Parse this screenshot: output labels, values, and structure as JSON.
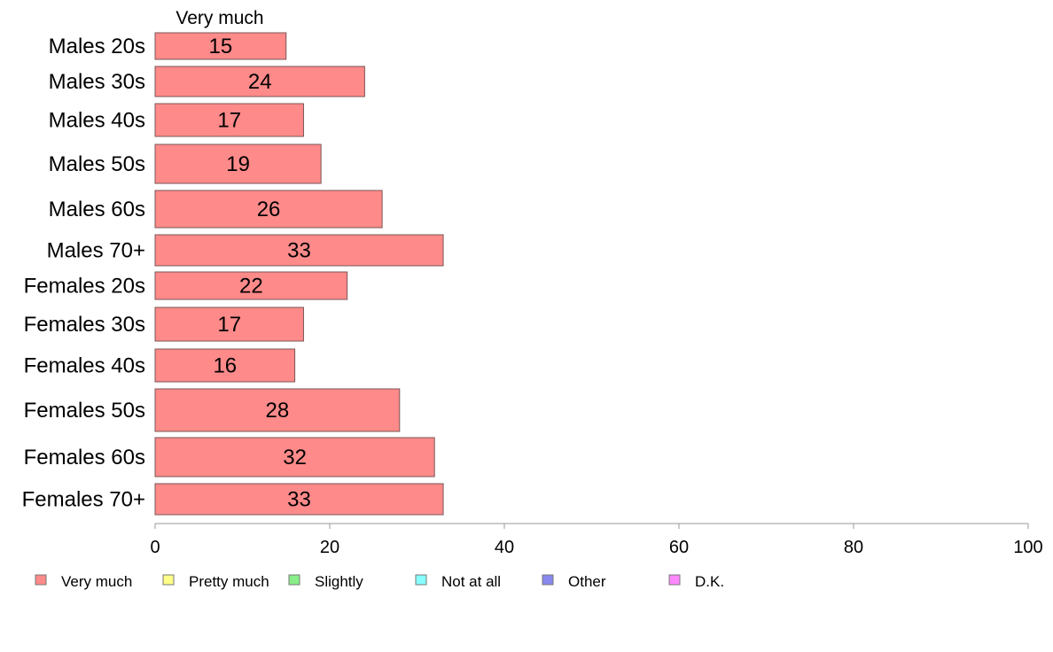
{
  "chart_data": {
    "type": "bar",
    "orientation": "horizontal",
    "stacked": true,
    "series_header": "Very much",
    "categories": [
      "Males 20s",
      "Males 30s",
      "Males 40s",
      "Males 50s",
      "Males 60s",
      "Males 70+",
      "Females 20s",
      "Females 30s",
      "Females 40s",
      "Females 50s",
      "Females 60s",
      "Females 70+"
    ],
    "series": [
      {
        "name": "Very much",
        "color": "#ff8a8a",
        "values": [
          15,
          24,
          17,
          19,
          26,
          33,
          22,
          17,
          16,
          28,
          32,
          33
        ]
      }
    ],
    "xlim": [
      0,
      100
    ],
    "xticks": [
      0,
      20,
      40,
      60,
      80,
      100
    ],
    "legend": [
      {
        "label": "Very much",
        "color": "#ff8a8a"
      },
      {
        "label": "Pretty much",
        "color": "#ffff88"
      },
      {
        "label": "Slightly",
        "color": "#88ee88"
      },
      {
        "label": "Not at all",
        "color": "#88ffff"
      },
      {
        "label": "Other",
        "color": "#8888ee"
      },
      {
        "label": "D.K.",
        "color": "#ff88ff"
      }
    ],
    "legend_position": "bottom",
    "grid": false
  }
}
